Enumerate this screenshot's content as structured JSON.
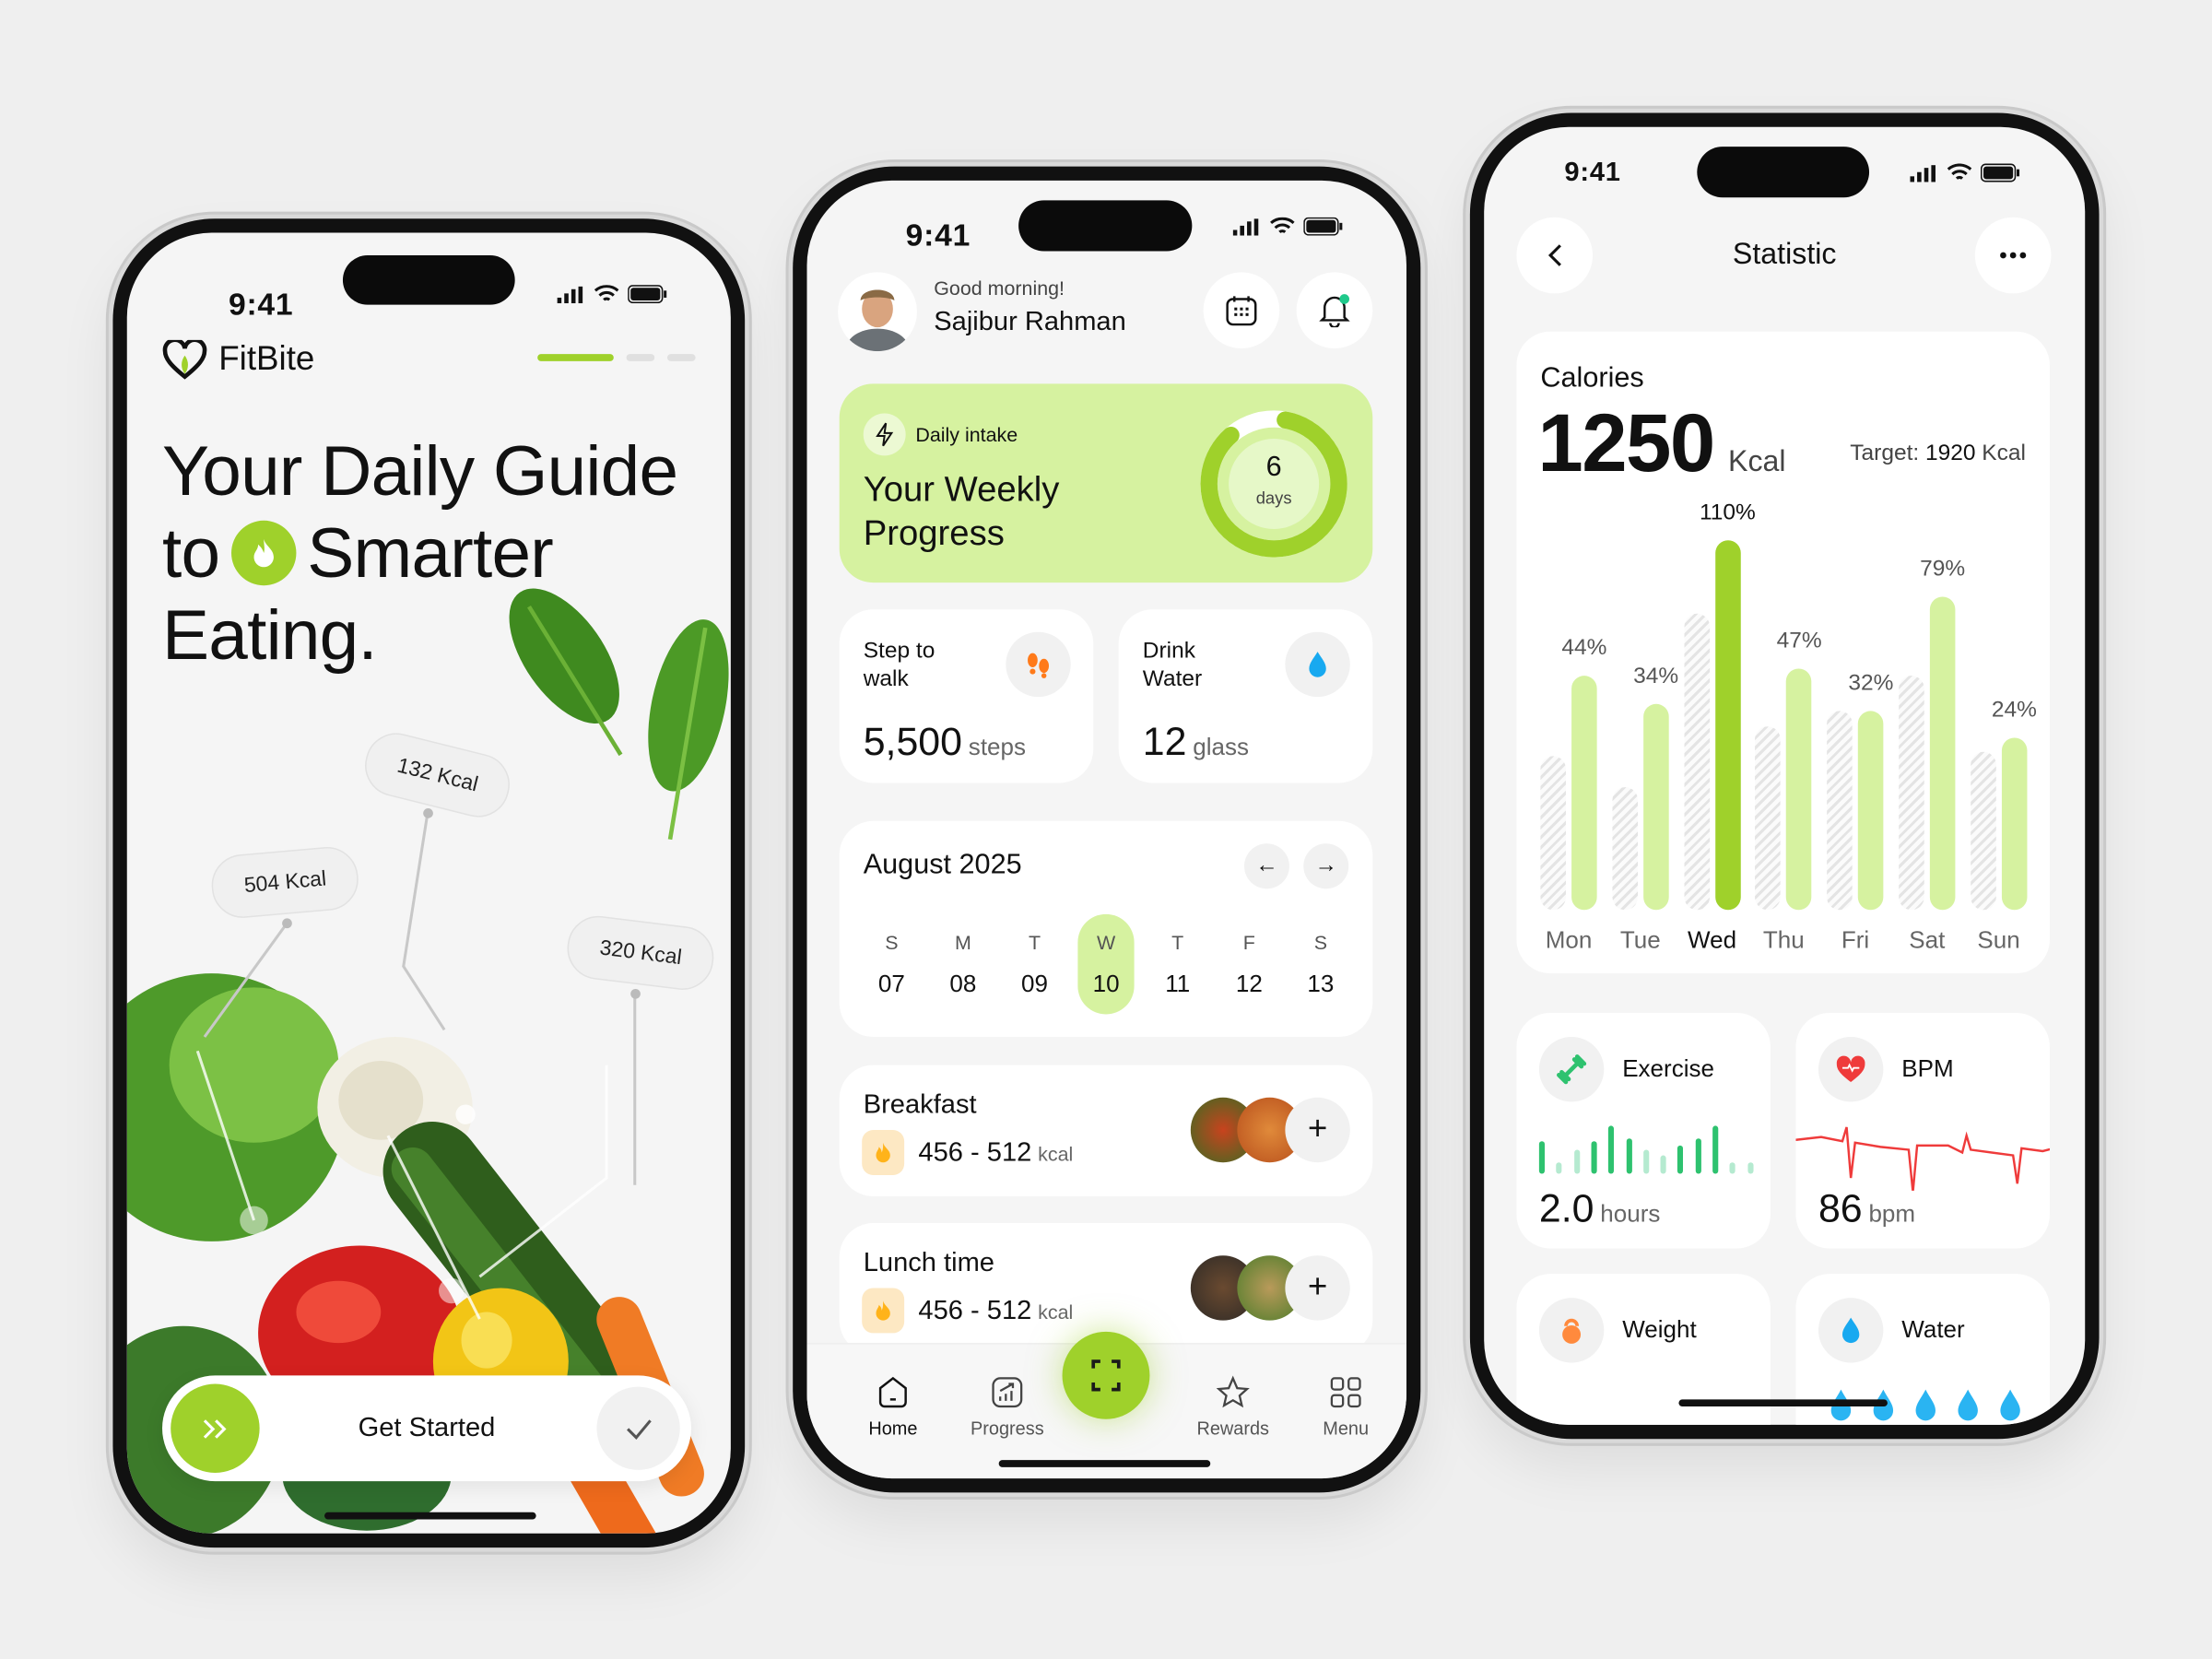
{
  "onboarding": {
    "time": "9:41",
    "brand": "FitBite",
    "step_current": 1,
    "steps_total": 3,
    "headline": {
      "line1": "Your Daily Guide",
      "line2a": "to",
      "line2b": "Smarter",
      "line3": "Eating."
    },
    "tags": [
      "132 Kcal",
      "504 Kcal",
      "320 Kcal"
    ],
    "cta": "Get Started",
    "accent": "#9fd12b"
  },
  "home": {
    "time": "9:41",
    "greeting": "Good morning!",
    "user": "Sajibur Rahman",
    "intake": {
      "label": "Daily intake",
      "title1": "Your Weekly",
      "title2": "Progress",
      "ring_value": "6",
      "ring_unit": "days",
      "ring_progress": 0.857
    },
    "steps": {
      "title1": "Step to",
      "title2": "walk",
      "value": "5,500",
      "unit": "steps"
    },
    "water": {
      "title1": "Drink",
      "title2": "Water",
      "value": "12",
      "unit": "glass"
    },
    "calendar": {
      "month": "August 2025",
      "days": [
        {
          "letter": "S",
          "num": "07"
        },
        {
          "letter": "M",
          "num": "08"
        },
        {
          "letter": "T",
          "num": "09"
        },
        {
          "letter": "W",
          "num": "10"
        },
        {
          "letter": "T",
          "num": "11"
        },
        {
          "letter": "F",
          "num": "12"
        },
        {
          "letter": "S",
          "num": "13"
        }
      ],
      "selected_index": 3
    },
    "meals": [
      {
        "name": "Breakfast",
        "range": "456 - 512",
        "unit": "kcal"
      },
      {
        "name": "Lunch time",
        "range": "456 - 512",
        "unit": "kcal"
      }
    ],
    "nav": {
      "home": "Home",
      "progress": "Progress",
      "rewards": "Rewards",
      "menu": "Menu",
      "active": "Home"
    }
  },
  "stats": {
    "time": "9:41",
    "title": "Statistic",
    "calories": {
      "label": "Calories",
      "value": "1250",
      "unit": "Kcal",
      "target_label": "Target:",
      "target_value": "1920",
      "target_unit": "Kcal"
    },
    "exercise": {
      "label": "Exercise",
      "value": "2.0",
      "unit": "hours",
      "bars": [
        0.65,
        0.15,
        0.45,
        0.65,
        1,
        0.7,
        0.45,
        0.3,
        0.55,
        0.7,
        1,
        0.12,
        0.12
      ]
    },
    "bpm": {
      "label": "BPM",
      "value": "86",
      "unit": "bpm",
      "color": "#ef3b3b"
    },
    "weight": {
      "label": "Weight"
    },
    "water": {
      "label": "Water"
    }
  },
  "chart_data": {
    "type": "bar",
    "title": "Calories",
    "categories": [
      "Mon",
      "Tue",
      "Wed",
      "Thu",
      "Fri",
      "Sat",
      "Sun"
    ],
    "series": [
      {
        "values": [
          44,
          34,
          110,
          47,
          32,
          79,
          24
        ],
        "labels": [
          "44%",
          "34%",
          "110%",
          "47%",
          "32%",
          "79%",
          "24%"
        ]
      },
      {
        "values": [
          19,
          12,
          71,
          27,
          32,
          44,
          20
        ],
        "style": "hatched"
      }
    ],
    "highlight": "Wed",
    "colors": {
      "bar": "#d6f2a0",
      "highlight": "#9fd12b",
      "reference": "#e4e4e4"
    },
    "grid": false
  }
}
